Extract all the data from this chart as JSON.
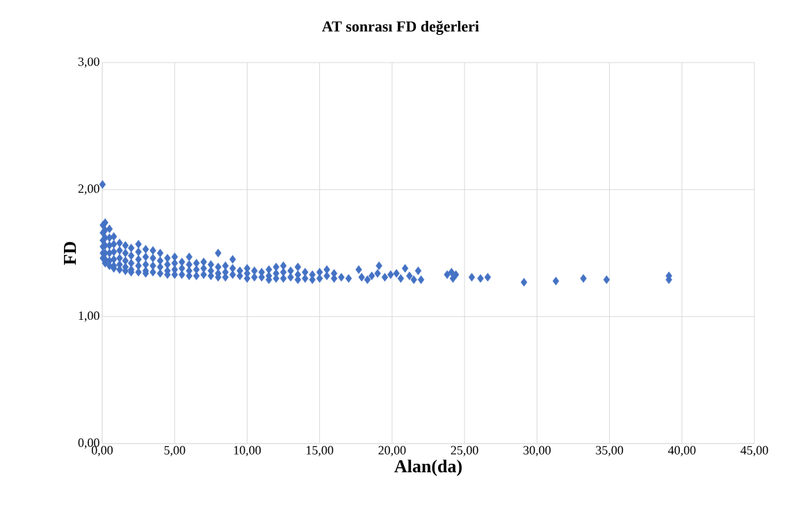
{
  "chart_data": {
    "type": "scatter",
    "title": "AT sonrası FD değerleri",
    "xlabel": "Alan(da)",
    "ylabel": "FD",
    "xlim": [
      0,
      45
    ],
    "ylim": [
      0,
      3
    ],
    "xticks": [
      {
        "value": 0,
        "label": "0,00"
      },
      {
        "value": 5,
        "label": "5,00"
      },
      {
        "value": 10,
        "label": "10,00"
      },
      {
        "value": 15,
        "label": "15,00"
      },
      {
        "value": 20,
        "label": "20,00"
      },
      {
        "value": 25,
        "label": "25,00"
      },
      {
        "value": 30,
        "label": "30,00"
      },
      {
        "value": 35,
        "label": "35,00"
      },
      {
        "value": 40,
        "label": "40,00"
      },
      {
        "value": 45,
        "label": "45,00"
      }
    ],
    "yticks": [
      {
        "value": 0,
        "label": "0,00"
      },
      {
        "value": 1,
        "label": "1,00"
      },
      {
        "value": 2,
        "label": "2,00"
      },
      {
        "value": 3,
        "label": "3,00"
      }
    ],
    "grid": true,
    "marker": "diamond",
    "color": "#4472c4",
    "x": [
      0.02,
      0.05,
      0.05,
      0.05,
      0.05,
      0.05,
      0.05,
      0.2,
      0.2,
      0.2,
      0.2,
      0.2,
      0.2,
      0.2,
      0.5,
      0.5,
      0.5,
      0.5,
      0.5,
      0.5,
      0.8,
      0.8,
      0.8,
      0.8,
      0.8,
      0.8,
      1.2,
      1.2,
      1.2,
      1.2,
      1.2,
      1.6,
      1.6,
      1.6,
      1.6,
      1.6,
      2.0,
      2.0,
      2.0,
      2.0,
      2.0,
      2.5,
      2.5,
      2.5,
      2.5,
      2.5,
      3.0,
      3.0,
      3.0,
      3.0,
      3.0,
      3.5,
      3.5,
      3.5,
      3.5,
      4.0,
      4.0,
      4.0,
      4.0,
      4.5,
      4.5,
      4.5,
      4.5,
      5.0,
      5.0,
      5.0,
      5.0,
      5.5,
      5.5,
      5.5,
      6.0,
      6.0,
      6.0,
      6.0,
      6.5,
      6.5,
      6.5,
      7.0,
      7.0,
      7.0,
      7.5,
      7.5,
      7.5,
      8.0,
      8.0,
      8.0,
      8.0,
      8.5,
      8.5,
      8.5,
      9.0,
      9.0,
      9.0,
      9.5,
      9.5,
      10.0,
      10.0,
      10.0,
      10.5,
      10.5,
      11.0,
      11.0,
      11.5,
      11.5,
      11.5,
      12.0,
      12.0,
      12.0,
      12.5,
      12.5,
      12.5,
      13.0,
      13.0,
      13.5,
      13.5,
      13.5,
      14.0,
      14.0,
      14.5,
      14.5,
      15.0,
      15.0,
      15.5,
      15.5,
      16.0,
      16.0,
      16.5,
      17.0,
      17.7,
      17.9,
      18.3,
      18.6,
      19.0,
      19.1,
      19.5,
      19.9,
      20.3,
      20.6,
      20.9,
      21.2,
      21.5,
      21.8,
      22.0,
      23.8,
      24.1,
      24.2,
      24.4,
      25.5,
      26.1,
      26.6,
      29.1,
      31.3,
      33.2,
      34.8,
      39.1,
      39.1
    ],
    "values": [
      2.04,
      1.72,
      1.66,
      1.6,
      1.55,
      1.5,
      1.46,
      1.74,
      1.68,
      1.62,
      1.56,
      1.5,
      1.45,
      1.42,
      1.69,
      1.62,
      1.56,
      1.5,
      1.44,
      1.4,
      1.63,
      1.57,
      1.51,
      1.45,
      1.4,
      1.38,
      1.58,
      1.52,
      1.46,
      1.41,
      1.37,
      1.56,
      1.5,
      1.44,
      1.39,
      1.36,
      1.54,
      1.48,
      1.42,
      1.37,
      1.35,
      1.57,
      1.51,
      1.45,
      1.4,
      1.35,
      1.53,
      1.47,
      1.41,
      1.36,
      1.34,
      1.52,
      1.46,
      1.4,
      1.35,
      1.5,
      1.44,
      1.39,
      1.34,
      1.46,
      1.41,
      1.36,
      1.33,
      1.47,
      1.42,
      1.37,
      1.33,
      1.43,
      1.38,
      1.33,
      1.47,
      1.41,
      1.36,
      1.32,
      1.42,
      1.37,
      1.32,
      1.43,
      1.38,
      1.33,
      1.41,
      1.36,
      1.32,
      1.5,
      1.39,
      1.34,
      1.31,
      1.4,
      1.35,
      1.31,
      1.45,
      1.38,
      1.33,
      1.36,
      1.32,
      1.38,
      1.34,
      1.3,
      1.36,
      1.31,
      1.35,
      1.31,
      1.37,
      1.32,
      1.29,
      1.39,
      1.34,
      1.3,
      1.4,
      1.35,
      1.3,
      1.36,
      1.31,
      1.39,
      1.33,
      1.29,
      1.35,
      1.3,
      1.33,
      1.29,
      1.35,
      1.3,
      1.37,
      1.32,
      1.34,
      1.3,
      1.31,
      1.3,
      1.37,
      1.31,
      1.29,
      1.32,
      1.34,
      1.4,
      1.31,
      1.33,
      1.34,
      1.3,
      1.38,
      1.32,
      1.29,
      1.36,
      1.29,
      1.33,
      1.35,
      1.3,
      1.33,
      1.31,
      1.3,
      1.31,
      1.27,
      1.28,
      1.3,
      1.29,
      1.32,
      1.29
    ]
  }
}
